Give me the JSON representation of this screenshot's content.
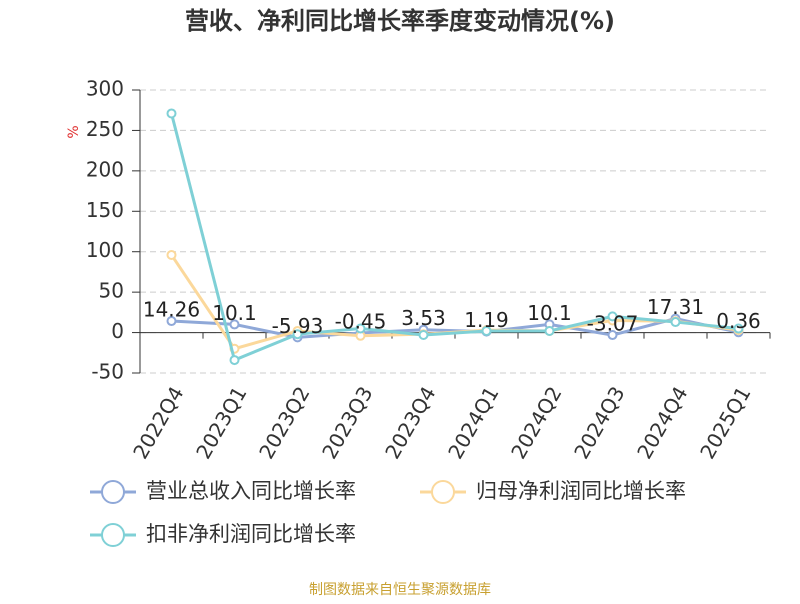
{
  "chart_data": {
    "type": "line",
    "title": "营收、净利同比增长率季度变动情况(%)",
    "y_label": "%",
    "source": "制图数据来自恒生聚源数据库",
    "categories": [
      "2022Q4",
      "2023Q1",
      "2023Q2",
      "2023Q3",
      "2023Q4",
      "2024Q1",
      "2024Q2",
      "2024Q3",
      "2024Q4",
      "2025Q1"
    ],
    "series": [
      {
        "name": "营业总收入同比增长率",
        "color": "#8fa8d8",
        "values": [
          14.26,
          10.1,
          -5.93,
          -0.45,
          3.53,
          1.19,
          10.1,
          -3.07,
          17.31,
          0.36
        ]
      },
      {
        "name": "归母净利润同比增长率",
        "color": "#fbd89b",
        "values": [
          96,
          -20,
          2,
          -4,
          -2,
          3,
          2,
          15,
          14,
          3
        ]
      },
      {
        "name": "扣非净利润同比增长率",
        "color": "#7fd0d6",
        "values": [
          271,
          -34,
          -2,
          5,
          -3,
          2,
          2,
          20,
          13,
          5
        ]
      }
    ],
    "ylim": [
      -50,
      300
    ],
    "yticks": [
      -50,
      0,
      50,
      100,
      150,
      200,
      250,
      300
    ],
    "grid": true
  }
}
